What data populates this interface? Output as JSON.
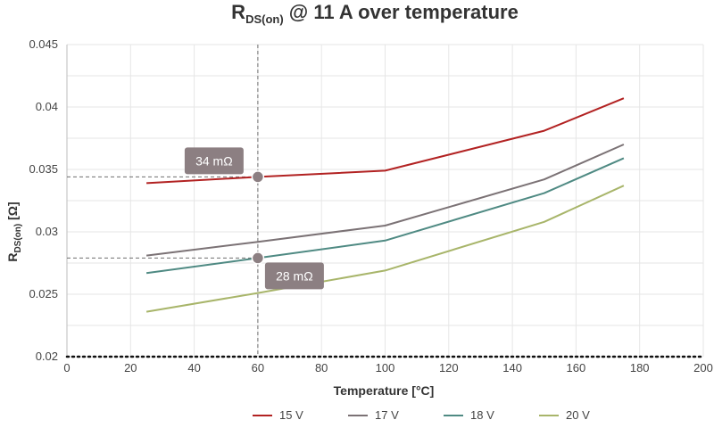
{
  "chart_data": {
    "type": "line",
    "title": {
      "main": "R",
      "sub": "DS(on)",
      "rest": " @ 11 A over temperature"
    },
    "xlabel": "Temperature [°C]",
    "ylabel": {
      "main": "R",
      "sub": "DS(on)",
      "rest": " [Ω]"
    },
    "xlim": [
      0,
      200
    ],
    "ylim": [
      0.02,
      0.045
    ],
    "xticks": [
      0,
      20,
      40,
      60,
      80,
      100,
      120,
      140,
      160,
      180,
      200
    ],
    "yticks": [
      "0.02",
      "0.025",
      "0.03",
      "0.035",
      "0.04",
      "0.045"
    ],
    "grid": true,
    "legend_position": "bottom",
    "series": [
      {
        "name": "15 V",
        "color": "#b22222",
        "points": [
          [
            25,
            0.0339
          ],
          [
            60,
            0.0344
          ],
          [
            100,
            0.0349
          ],
          [
            150,
            0.0381
          ],
          [
            175,
            0.0407
          ]
        ]
      },
      {
        "name": "17 V",
        "color": "#7b7275",
        "points": [
          [
            25,
            0.0281
          ],
          [
            60,
            0.0292
          ],
          [
            100,
            0.0305
          ],
          [
            150,
            0.0342
          ],
          [
            175,
            0.037
          ]
        ]
      },
      {
        "name": "18 V",
        "color": "#4f8a83",
        "points": [
          [
            25,
            0.0267
          ],
          [
            60,
            0.0279
          ],
          [
            100,
            0.0293
          ],
          [
            150,
            0.0331
          ],
          [
            175,
            0.0359
          ]
        ]
      },
      {
        "name": "20 V",
        "color": "#a8b56a",
        "points": [
          [
            25,
            0.0236
          ],
          [
            60,
            0.0251
          ],
          [
            100,
            0.0269
          ],
          [
            150,
            0.0308
          ],
          [
            175,
            0.0337
          ]
        ]
      }
    ],
    "annotations": [
      {
        "label": "34 mΩ",
        "x": 60,
        "y": 0.0344,
        "label_side": "above-left"
      },
      {
        "label": "28 mΩ",
        "x": 60,
        "y": 0.0279,
        "label_side": "below-right"
      }
    ],
    "annotation_color": "#8c7f82"
  }
}
